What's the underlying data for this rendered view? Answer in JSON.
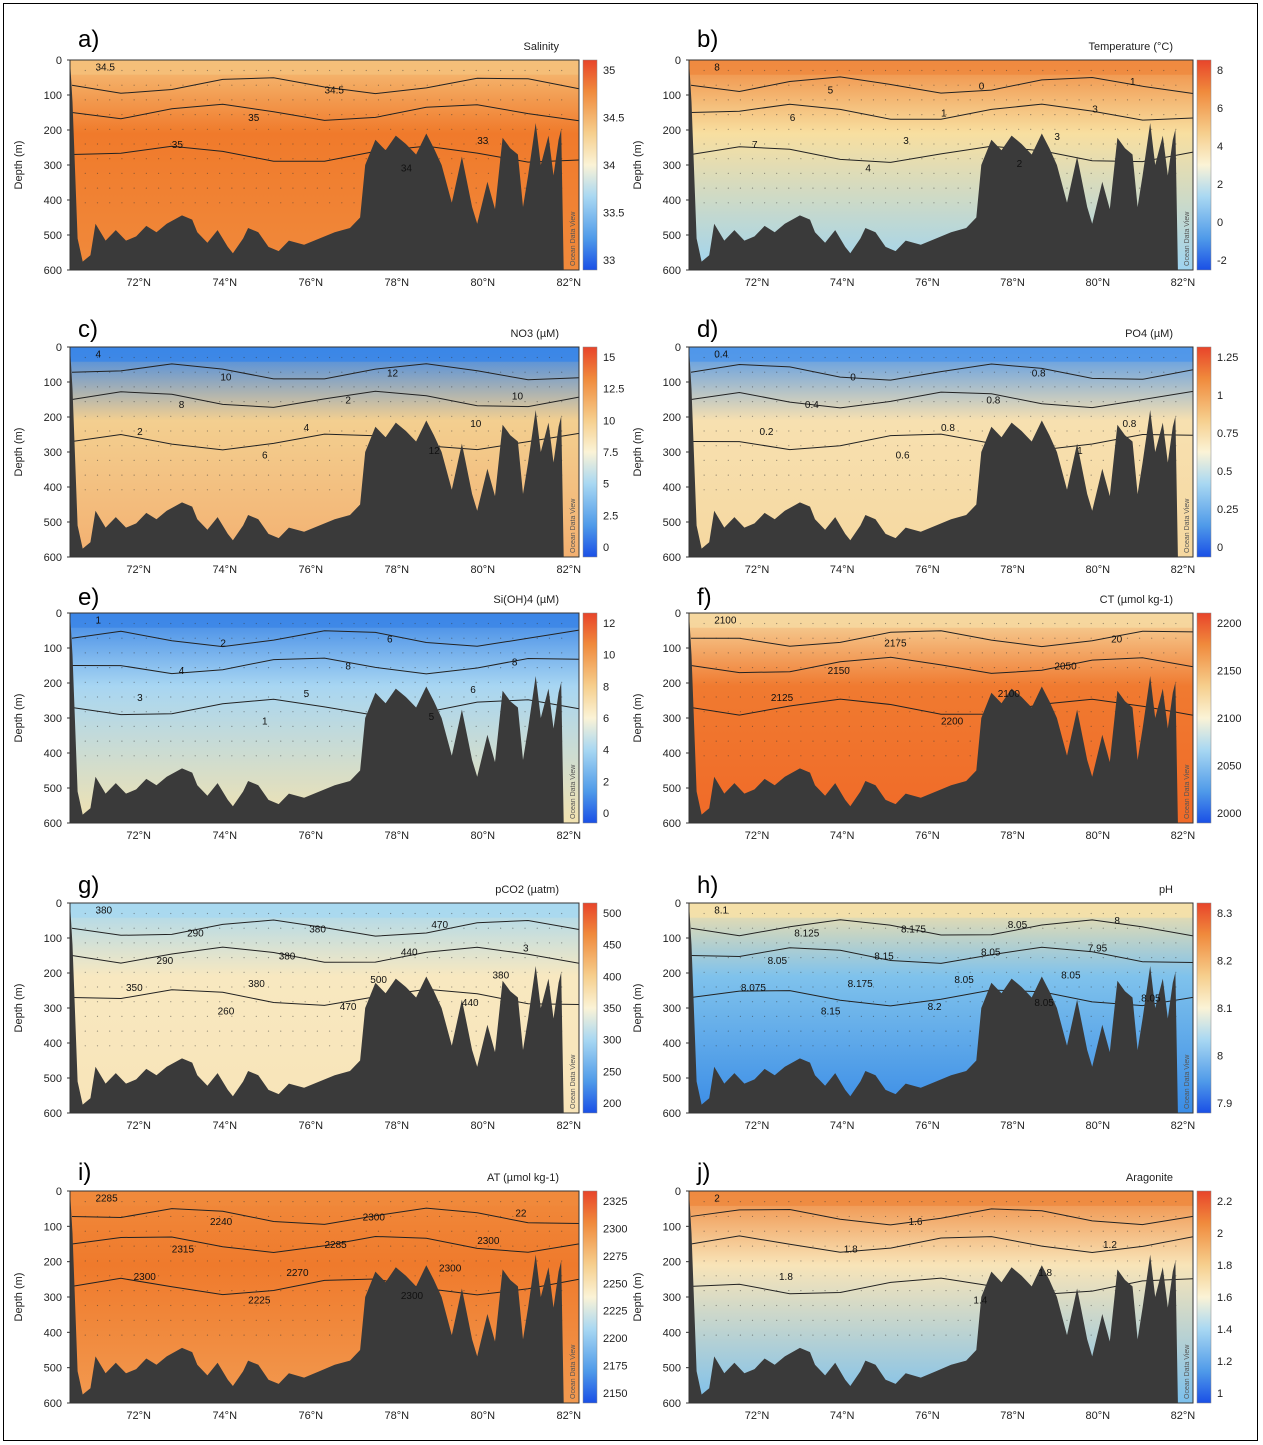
{
  "chart_data": [
    {
      "type": "heatmap",
      "panel_label": "a)",
      "title": "Salinity",
      "ylabel": "Depth (m)",
      "x_ticks": [
        "72°N",
        "74°N",
        "76°N",
        "78°N",
        "80°N",
        "82°N"
      ],
      "y_ticks": [
        "0",
        "100",
        "200",
        "300",
        "400",
        "500",
        "600"
      ],
      "colorbar": {
        "ticks": [
          "35",
          "34.5",
          "34",
          "33.5",
          "33"
        ],
        "range": [
          32.7,
          35.3
        ]
      },
      "contour_labels": [
        "34.5",
        "35",
        "35",
        "34.5",
        "34",
        "33"
      ],
      "watermark": "Ocean Data View",
      "palette": {
        "surface": "#f2b66a",
        "core": "#ef7a2c",
        "deep": "#ec8a3a"
      },
      "colors": {
        "deep": "#f08a3c",
        "core": "#f07a2b",
        "surface": "#f5c07a"
      }
    },
    {
      "type": "heatmap",
      "panel_label": "b)",
      "title": "Temperature (°C)",
      "ylabel": "Depth (m)",
      "x_ticks": [
        "72°N",
        "74°N",
        "76°N",
        "78°N",
        "80°N",
        "82°N"
      ],
      "y_ticks": [
        "0",
        "100",
        "200",
        "300",
        "400",
        "500",
        "600"
      ],
      "colorbar": {
        "ticks": [
          "8",
          "6",
          "4",
          "2",
          "0",
          "-2"
        ],
        "range": [
          -2,
          9
        ]
      },
      "contour_labels": [
        "8",
        "7",
        "6",
        "5",
        "4",
        "3",
        "1",
        "0",
        "2",
        "3",
        "3",
        "1"
      ],
      "watermark": "Ocean Data View",
      "colors": {
        "surface": "#ef8a40",
        "core": "#f8dfa0",
        "deep": "#9fd4f0"
      }
    },
    {
      "type": "heatmap",
      "panel_label": "c)",
      "title": "NO3 (µM)",
      "ylabel": "Depth (m)",
      "x_ticks": [
        "72°N",
        "74°N",
        "76°N",
        "78°N",
        "80°N",
        "82°N"
      ],
      "y_ticks": [
        "0",
        "100",
        "200",
        "300",
        "400",
        "500",
        "600"
      ],
      "colorbar": {
        "ticks": [
          "15",
          "12.5",
          "10",
          "7.5",
          "5",
          "2.5",
          "0"
        ],
        "range": [
          0,
          15
        ]
      },
      "contour_labels": [
        "4",
        "2",
        "8",
        "10",
        "6",
        "4",
        "2",
        "12",
        "12",
        "10",
        "10"
      ],
      "watermark": "Ocean Data View",
      "colors": {
        "surface": "#3a86e8",
        "core": "#f3cf90",
        "deep": "#f3b070"
      }
    },
    {
      "type": "heatmap",
      "panel_label": "d)",
      "title": "PO4 (µM)",
      "ylabel": "Depth (m)",
      "x_ticks": [
        "72°N",
        "74°N",
        "76°N",
        "78°N",
        "80°N",
        "82°N"
      ],
      "y_ticks": [
        "0",
        "100",
        "200",
        "300",
        "400",
        "500",
        "600"
      ],
      "colorbar": {
        "ticks": [
          "1.25",
          "1",
          "0.75",
          "0.5",
          "0.25",
          "0"
        ],
        "range": [
          0,
          1.3
        ]
      },
      "contour_labels": [
        "0.4",
        "0.2",
        "0.4",
        "0",
        "0.6",
        "0.8",
        "0.8",
        "0.8",
        "1",
        "0.8"
      ],
      "watermark": "Ocean Data View",
      "colors": {
        "surface": "#4f96ea",
        "core": "#f7e0b0",
        "deep": "#f6d8a0"
      }
    },
    {
      "type": "heatmap",
      "panel_label": "e)",
      "title": "Si(OH)4 (µM)",
      "ylabel": "Depth (m)",
      "x_ticks": [
        "72°N",
        "74°N",
        "76°N",
        "78°N",
        "80°N",
        "82°N"
      ],
      "y_ticks": [
        "0",
        "100",
        "200",
        "300",
        "400",
        "500",
        "600"
      ],
      "colorbar": {
        "ticks": [
          "12",
          "10",
          "8",
          "6",
          "4",
          "2",
          "0"
        ],
        "range": [
          0,
          12
        ]
      },
      "contour_labels": [
        "1",
        "3",
        "4",
        "2",
        "1",
        "5",
        "8",
        "6",
        "5",
        "6",
        "8"
      ],
      "watermark": "Ocean Data View",
      "colors": {
        "surface": "#3c86e6",
        "core": "#a8d6f2",
        "deep": "#f2e2b0"
      }
    },
    {
      "type": "heatmap",
      "panel_label": "f)",
      "title": "CT (µmol kg-1)",
      "ylabel": "Depth (m)",
      "x_ticks": [
        "72°N",
        "74°N",
        "76°N",
        "78°N",
        "80°N",
        "82°N"
      ],
      "y_ticks": [
        "0",
        "100",
        "200",
        "300",
        "400",
        "500",
        "600"
      ],
      "colorbar": {
        "ticks": [
          "2200",
          "2150",
          "2100",
          "2050",
          "2000"
        ],
        "range": [
          2000,
          2200
        ]
      },
      "contour_labels": [
        "2100",
        "2125",
        "2150",
        "2175",
        "2200",
        "2100",
        "2050",
        "20"
      ],
      "watermark": "Ocean Data View",
      "colors": {
        "surface": "#f6d8a0",
        "core": "#f07a30",
        "deep": "#f06a28"
      }
    },
    {
      "type": "heatmap",
      "panel_label": "g)",
      "title": "pCO2 (µatm)",
      "ylabel": "Depth (m)",
      "x_ticks": [
        "72°N",
        "74°N",
        "76°N",
        "78°N",
        "80°N",
        "82°N"
      ],
      "y_ticks": [
        "0",
        "100",
        "200",
        "300",
        "400",
        "500",
        "600"
      ],
      "colorbar": {
        "ticks": [
          "500",
          "450",
          "400",
          "350",
          "300",
          "250",
          "200"
        ],
        "range": [
          200,
          520
        ]
      },
      "contour_labels": [
        "380",
        "350",
        "290",
        "290",
        "260",
        "380",
        "380",
        "380",
        "470",
        "500",
        "440",
        "470",
        "440",
        "380",
        "3"
      ],
      "watermark": "Ocean Data View",
      "colors": {
        "surface": "#a8d8f0",
        "core": "#f8e8c0",
        "deep": "#f8e4b8"
      }
    },
    {
      "type": "heatmap",
      "panel_label": "h)",
      "title": "pH",
      "ylabel": "Depth (m)",
      "x_ticks": [
        "72°N",
        "74°N",
        "76°N",
        "78°N",
        "80°N",
        "82°N"
      ],
      "y_ticks": [
        "0",
        "100",
        "200",
        "300",
        "400",
        "500",
        "600"
      ],
      "colorbar": {
        "ticks": [
          "8.3",
          "8.2",
          "8.1",
          "8",
          "7.9"
        ],
        "range": [
          7.9,
          8.3
        ]
      },
      "contour_labels": [
        "8.1",
        "8.075",
        "8.05",
        "8.125",
        "8.15",
        "8.175",
        "8.15",
        "8.175",
        "8.2",
        "8.05",
        "8.05",
        "8.05",
        "8.05",
        "8.05",
        "7.95",
        "8",
        "8.05"
      ],
      "watermark": "Ocean Data View",
      "colors": {
        "surface": "#f6e0a8",
        "core": "#7fc2ec",
        "deep": "#3a8ce6"
      }
    },
    {
      "type": "heatmap",
      "panel_label": "i)",
      "title": "AT (µmol kg-1)",
      "ylabel": "Depth (m)",
      "x_ticks": [
        "72°N",
        "74°N",
        "76°N",
        "78°N",
        "80°N",
        "82°N"
      ],
      "y_ticks": [
        "0",
        "100",
        "200",
        "300",
        "400",
        "500",
        "600"
      ],
      "colorbar": {
        "ticks": [
          "2325",
          "2300",
          "2275",
          "2250",
          "2225",
          "2200",
          "2175",
          "2150"
        ],
        "range": [
          2150,
          2325
        ]
      },
      "contour_labels": [
        "2285",
        "2300",
        "2315",
        "2240",
        "2225",
        "2270",
        "2285",
        "2300",
        "2300",
        "2300",
        "2300",
        "22"
      ],
      "watermark": "Ocean Data View",
      "colors": {
        "surface": "#f08a3c",
        "core": "#ef7a2c",
        "deep": "#f29a50"
      }
    },
    {
      "type": "heatmap",
      "panel_label": "j)",
      "title": "Aragonite",
      "ylabel": "Depth (m)",
      "x_ticks": [
        "72°N",
        "74°N",
        "76°N",
        "78°N",
        "80°N",
        "82°N"
      ],
      "y_ticks": [
        "0",
        "100",
        "200",
        "300",
        "400",
        "500",
        "600"
      ],
      "colorbar": {
        "ticks": [
          "2.2",
          "2",
          "1.8",
          "1.6",
          "1.4",
          "1.2",
          "1"
        ],
        "range": [
          1,
          2.2
        ]
      },
      "contour_labels": [
        "2",
        "1.8",
        "1.8",
        "1.6",
        "1.4",
        "1.8",
        "1.2"
      ],
      "watermark": "Ocean Data View",
      "colors": {
        "surface": "#ef8a40",
        "core": "#f8e4b8",
        "deep": "#7cc0ec"
      }
    }
  ]
}
